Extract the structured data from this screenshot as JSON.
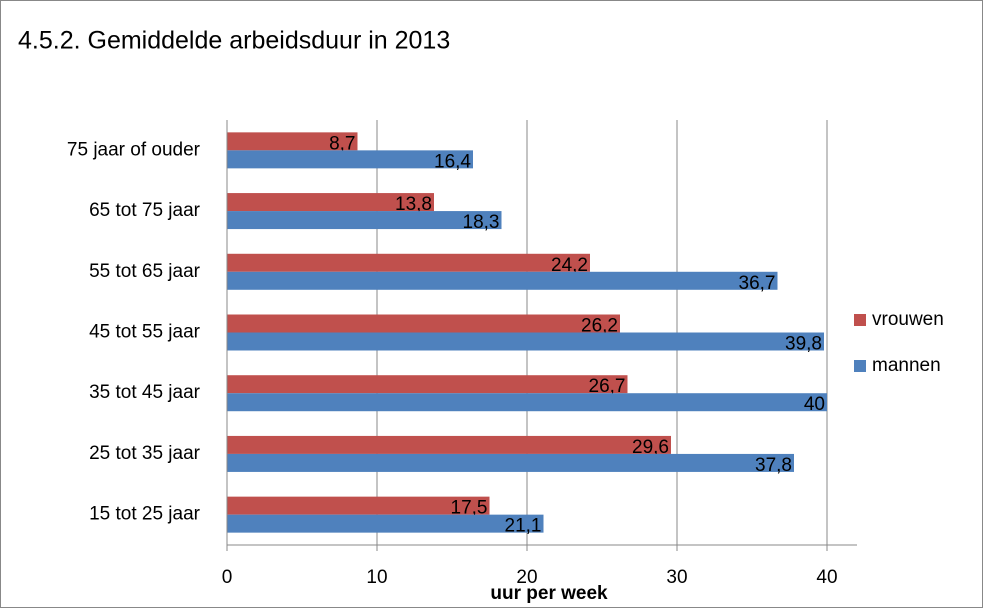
{
  "chart_data": {
    "type": "bar",
    "orientation": "horizontal",
    "title": "4.5.2. Gemiddelde arbeidsduur in 2013",
    "x_label": "uur per week",
    "categories": [
      "75 jaar of ouder",
      "65 tot 75 jaar",
      "55 tot 65 jaar",
      "45 tot 55 jaar",
      "35 tot 45 jaar",
      "25 tot 35 jaar",
      "15 tot 25 jaar"
    ],
    "series": [
      {
        "name": "vrouwen",
        "color": "#c0504d",
        "values": [
          8.7,
          13.8,
          24.2,
          26.2,
          26.7,
          29.6,
          17.5
        ],
        "value_labels": [
          "8,7",
          "13,8",
          "24,2",
          "26,2",
          "26,7",
          "29,6",
          "17,5"
        ]
      },
      {
        "name": "mannen",
        "color": "#4f81bd",
        "values": [
          16.4,
          18.3,
          36.7,
          39.8,
          40,
          37.8,
          21.1
        ],
        "value_labels": [
          "16,4",
          "18,3",
          "36,7",
          "39,8",
          "40",
          "37,8",
          "21,1"
        ]
      }
    ],
    "xlim": [
      0,
      42
    ],
    "xticks": [
      0,
      10,
      20,
      30,
      40
    ],
    "grid": true,
    "legend": "right"
  }
}
